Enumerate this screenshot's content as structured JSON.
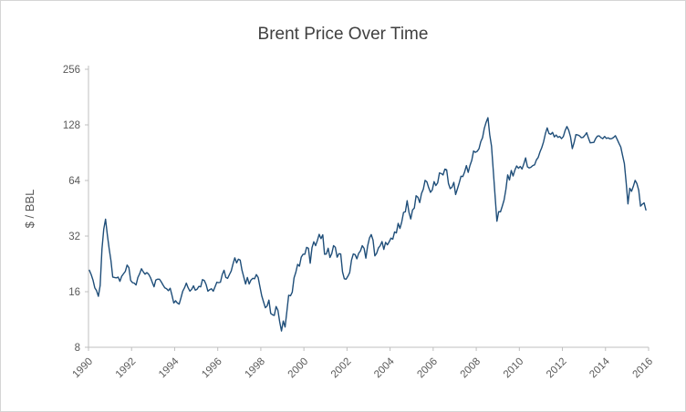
{
  "chart_data": {
    "type": "line",
    "title": "Brent Price Over Time",
    "ylabel": "$ / BBL",
    "xlabel": "",
    "y_scale": "log2",
    "ylim": [
      8,
      256
    ],
    "xlim": [
      1990,
      2016
    ],
    "y_ticks": [
      256,
      128,
      64,
      32,
      16,
      8
    ],
    "x_ticks": [
      1990,
      1992,
      1994,
      1996,
      1998,
      2000,
      2002,
      2004,
      2006,
      2008,
      2010,
      2012,
      2014,
      2016
    ],
    "line_color": "#1F4E79",
    "grid": false,
    "legend": "none",
    "series": [
      {
        "name": "Brent",
        "x_start": 1990.042,
        "x_step_years": 0.0833333,
        "values": [
          20.9,
          19.8,
          18.5,
          16.8,
          16.2,
          15.1,
          17.3,
          27.2,
          34.9,
          39.5,
          32.5,
          27.4,
          23.6,
          19.2,
          19.1,
          19.0,
          19.2,
          18.2,
          19.4,
          20.0,
          20.6,
          22.3,
          21.6,
          18.4,
          17.9,
          17.8,
          17.4,
          19.1,
          20.0,
          21.3,
          20.5,
          19.9,
          20.3,
          19.9,
          19.1,
          18.0,
          17.0,
          18.5,
          18.7,
          18.7,
          18.1,
          17.4,
          16.8,
          16.6,
          16.2,
          16.7,
          15.3,
          13.9,
          14.3,
          13.9,
          13.7,
          14.8,
          16.1,
          16.8,
          17.8,
          16.8,
          16.1,
          16.5,
          17.2,
          16.3,
          16.5,
          17.1,
          17.0,
          18.6,
          18.4,
          17.5,
          16.1,
          16.4,
          16.6,
          16.1,
          17.0,
          18.0,
          17.9,
          18.0,
          19.8,
          20.9,
          19.1,
          18.9,
          19.8,
          20.7,
          22.6,
          24.4,
          22.9,
          24.0,
          23.7,
          20.9,
          19.2,
          17.6,
          19.1,
          17.6,
          18.5,
          18.9,
          18.8,
          19.8,
          19.1,
          17.0,
          15.2,
          14.1,
          13.1,
          13.4,
          14.4,
          12.2,
          12.0,
          11.9,
          13.3,
          12.7,
          11.0,
          9.8,
          11.1,
          10.3,
          12.5,
          15.3,
          15.2,
          15.9,
          19.0,
          20.4,
          22.5,
          22.0,
          24.6,
          25.5,
          25.5,
          27.8,
          27.5,
          22.8,
          27.7,
          29.8,
          28.4,
          30.3,
          32.7,
          31.0,
          32.5,
          25.5,
          25.6,
          27.5,
          24.5,
          25.7,
          28.4,
          27.8,
          24.6,
          25.7,
          25.6,
          20.5,
          18.8,
          18.7,
          19.4,
          20.3,
          23.7,
          25.6,
          25.4,
          24.1,
          25.8,
          26.6,
          28.4,
          27.5,
          24.3,
          28.3,
          31.2,
          32.6,
          30.4,
          25.0,
          25.8,
          27.6,
          28.4,
          29.9,
          27.1,
          29.6,
          28.7,
          29.8,
          31.2,
          30.8,
          33.7,
          33.3,
          37.5,
          35.2,
          38.2,
          43.0,
          43.3,
          49.7,
          43.1,
          39.6,
          44.3,
          45.4,
          52.9,
          51.9,
          48.6,
          54.4,
          57.4,
          64.1,
          62.9,
          58.5,
          55.2,
          56.9,
          63.1,
          60.1,
          62.1,
          70.3,
          69.8,
          68.6,
          73.7,
          73.1,
          61.7,
          57.8,
          58.9,
          62.5,
          53.7,
          57.6,
          62.1,
          67.5,
          67.2,
          71.1,
          77.0,
          70.8,
          77.2,
          82.3,
          92.4,
          90.9,
          92.0,
          95.0,
          103.7,
          109.1,
          122.8,
          132.3,
          140.0,
          113.2,
          98.1,
          71.9,
          52.5,
          38.5,
          43.4,
          43.3,
          46.5,
          50.2,
          57.3,
          68.6,
          64.4,
          72.5,
          67.7,
          72.8,
          76.7,
          74.5,
          76.2,
          73.8,
          78.8,
          84.8,
          75.9,
          74.8,
          75.6,
          77.1,
          77.8,
          82.7,
          85.3,
          91.4,
          96.5,
          103.7,
          114.6,
          123.3,
          115.0,
          113.8,
          116.5,
          110.2,
          112.8,
          109.6,
          110.8,
          107.9,
          110.7,
          119.3,
          125.4,
          119.7,
          110.3,
          95.2,
          102.6,
          113.4,
          112.9,
          111.7,
          109.1,
          109.5,
          112.3,
          116.1,
          108.5,
          102.3,
          102.6,
          102.9,
          107.9,
          111.3,
          111.6,
          109.1,
          107.8,
          110.8,
          108.1,
          108.9,
          107.5,
          107.8,
          109.5,
          111.8,
          106.8,
          101.6,
          97.1,
          87.4,
          79.0,
          62.3,
          47.8,
          58.1,
          55.9,
          59.5,
          64.1,
          61.5,
          56.6,
          46.5,
          47.6,
          48.4,
          44.3
        ]
      }
    ]
  }
}
